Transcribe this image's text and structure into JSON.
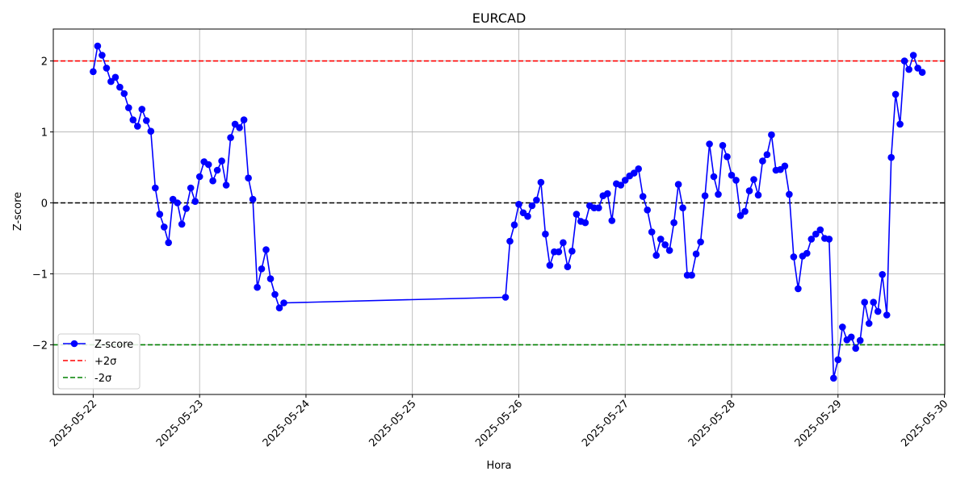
{
  "chart_data": {
    "type": "line",
    "title": "EURCAD",
    "xlabel": "Hora",
    "ylabel": "Z-score",
    "xlim": [
      "2025-05-21T15:00",
      "2025-05-30T00:05"
    ],
    "ylim": [
      -2.7,
      2.45
    ],
    "x_tick_labels": [
      "2025-05-22",
      "2025-05-23",
      "2025-05-24",
      "2025-05-25",
      "2025-05-26",
      "2025-05-27",
      "2025-05-28",
      "2025-05-29",
      "2025-05-30"
    ],
    "y_tick_values": [
      -2,
      -1,
      0,
      1,
      2
    ],
    "y_tick_labels": [
      "−2",
      "−1",
      "0",
      "1",
      "2"
    ],
    "grid": true,
    "legend_position": "lower-left",
    "reference_lines": [
      {
        "name": "+2σ",
        "y": 2,
        "color": "#ff0000",
        "style": "dashed"
      },
      {
        "name": "0",
        "y": 0,
        "color": "#000000",
        "style": "dashed"
      },
      {
        "name": "-2σ",
        "y": -2,
        "color": "#008000",
        "style": "dashed"
      }
    ],
    "series": [
      {
        "name": "Z-score",
        "color": "#0000ff",
        "marker": "circle",
        "points": [
          [
            "2025-05-22T00:00",
            1.85
          ],
          [
            "2025-05-22T01:00",
            2.21
          ],
          [
            "2025-05-22T02:00",
            2.08
          ],
          [
            "2025-05-22T03:00",
            1.9
          ],
          [
            "2025-05-22T04:00",
            1.71
          ],
          [
            "2025-05-22T05:00",
            1.77
          ],
          [
            "2025-05-22T06:00",
            1.63
          ],
          [
            "2025-05-22T07:00",
            1.54
          ],
          [
            "2025-05-22T08:00",
            1.34
          ],
          [
            "2025-05-22T09:00",
            1.17
          ],
          [
            "2025-05-22T10:00",
            1.08
          ],
          [
            "2025-05-22T11:00",
            1.32
          ],
          [
            "2025-05-22T12:00",
            1.16
          ],
          [
            "2025-05-22T13:00",
            1.01
          ],
          [
            "2025-05-22T14:00",
            0.21
          ],
          [
            "2025-05-22T15:00",
            -0.16
          ],
          [
            "2025-05-22T16:00",
            -0.34
          ],
          [
            "2025-05-22T17:00",
            -0.56
          ],
          [
            "2025-05-22T18:00",
            0.05
          ],
          [
            "2025-05-22T19:00",
            0.0
          ],
          [
            "2025-05-22T20:00",
            -0.3
          ],
          [
            "2025-05-22T21:00",
            -0.08
          ],
          [
            "2025-05-22T22:00",
            0.21
          ],
          [
            "2025-05-22T23:00",
            0.02
          ],
          [
            "2025-05-23T00:00",
            0.37
          ],
          [
            "2025-05-23T01:00",
            0.58
          ],
          [
            "2025-05-23T02:00",
            0.54
          ],
          [
            "2025-05-23T03:00",
            0.31
          ],
          [
            "2025-05-23T04:00",
            0.46
          ],
          [
            "2025-05-23T05:00",
            0.59
          ],
          [
            "2025-05-23T06:00",
            0.25
          ],
          [
            "2025-05-23T07:00",
            0.92
          ],
          [
            "2025-05-23T08:00",
            1.11
          ],
          [
            "2025-05-23T09:00",
            1.06
          ],
          [
            "2025-05-23T10:00",
            1.17
          ],
          [
            "2025-05-23T11:00",
            0.35
          ],
          [
            "2025-05-23T12:00",
            0.05
          ],
          [
            "2025-05-23T13:00",
            -1.19
          ],
          [
            "2025-05-23T14:00",
            -0.93
          ],
          [
            "2025-05-23T15:00",
            -0.66
          ],
          [
            "2025-05-23T16:00",
            -1.07
          ],
          [
            "2025-05-23T17:00",
            -1.29
          ],
          [
            "2025-05-23T18:00",
            -1.48
          ],
          [
            "2025-05-23T19:00",
            -1.41
          ],
          [
            "2025-05-25T21:00",
            -1.33
          ],
          [
            "2025-05-25T22:00",
            -0.54
          ],
          [
            "2025-05-25T23:00",
            -0.31
          ],
          [
            "2025-05-26T00:00",
            -0.02
          ],
          [
            "2025-05-26T01:00",
            -0.14
          ],
          [
            "2025-05-26T02:00",
            -0.19
          ],
          [
            "2025-05-26T03:00",
            -0.04
          ],
          [
            "2025-05-26T04:00",
            0.04
          ],
          [
            "2025-05-26T05:00",
            0.29
          ],
          [
            "2025-05-26T06:00",
            -0.44
          ],
          [
            "2025-05-26T07:00",
            -0.88
          ],
          [
            "2025-05-26T08:00",
            -0.69
          ],
          [
            "2025-05-26T09:00",
            -0.69
          ],
          [
            "2025-05-26T10:00",
            -0.56
          ],
          [
            "2025-05-26T11:00",
            -0.9
          ],
          [
            "2025-05-26T12:00",
            -0.68
          ],
          [
            "2025-05-26T13:00",
            -0.16
          ],
          [
            "2025-05-26T14:00",
            -0.26
          ],
          [
            "2025-05-26T15:00",
            -0.28
          ],
          [
            "2025-05-26T16:00",
            -0.04
          ],
          [
            "2025-05-26T17:00",
            -0.07
          ],
          [
            "2025-05-26T18:00",
            -0.07
          ],
          [
            "2025-05-26T19:00",
            0.1
          ],
          [
            "2025-05-26T20:00",
            0.13
          ],
          [
            "2025-05-26T21:00",
            -0.25
          ],
          [
            "2025-05-26T22:00",
            0.27
          ],
          [
            "2025-05-26T23:00",
            0.25
          ],
          [
            "2025-05-27T00:00",
            0.32
          ],
          [
            "2025-05-27T01:00",
            0.38
          ],
          [
            "2025-05-27T02:00",
            0.42
          ],
          [
            "2025-05-27T03:00",
            0.48
          ],
          [
            "2025-05-27T04:00",
            0.09
          ],
          [
            "2025-05-27T05:00",
            -0.1
          ],
          [
            "2025-05-27T06:00",
            -0.41
          ],
          [
            "2025-05-27T07:00",
            -0.74
          ],
          [
            "2025-05-27T08:00",
            -0.51
          ],
          [
            "2025-05-27T09:00",
            -0.59
          ],
          [
            "2025-05-27T10:00",
            -0.67
          ],
          [
            "2025-05-27T11:00",
            -0.28
          ],
          [
            "2025-05-27T12:00",
            0.26
          ],
          [
            "2025-05-27T13:00",
            -0.07
          ],
          [
            "2025-05-27T14:00",
            -1.02
          ],
          [
            "2025-05-27T15:00",
            -1.02
          ],
          [
            "2025-05-27T16:00",
            -0.72
          ],
          [
            "2025-05-27T17:00",
            -0.55
          ],
          [
            "2025-05-27T18:00",
            0.1
          ],
          [
            "2025-05-27T19:00",
            0.83
          ],
          [
            "2025-05-27T20:00",
            0.37
          ],
          [
            "2025-05-27T21:00",
            0.12
          ],
          [
            "2025-05-27T22:00",
            0.81
          ],
          [
            "2025-05-27T23:00",
            0.65
          ],
          [
            "2025-05-28T00:00",
            0.39
          ],
          [
            "2025-05-28T01:00",
            0.32
          ],
          [
            "2025-05-28T02:00",
            -0.18
          ],
          [
            "2025-05-28T03:00",
            -0.12
          ],
          [
            "2025-05-28T04:00",
            0.17
          ],
          [
            "2025-05-28T05:00",
            0.33
          ],
          [
            "2025-05-28T06:00",
            0.11
          ],
          [
            "2025-05-28T07:00",
            0.59
          ],
          [
            "2025-05-28T08:00",
            0.68
          ],
          [
            "2025-05-28T09:00",
            0.96
          ],
          [
            "2025-05-28T10:00",
            0.46
          ],
          [
            "2025-05-28T11:00",
            0.47
          ],
          [
            "2025-05-28T12:00",
            0.52
          ],
          [
            "2025-05-28T13:00",
            0.12
          ],
          [
            "2025-05-28T14:00",
            -0.76
          ],
          [
            "2025-05-28T15:00",
            -1.21
          ],
          [
            "2025-05-28T16:00",
            -0.75
          ],
          [
            "2025-05-28T17:00",
            -0.71
          ],
          [
            "2025-05-28T18:00",
            -0.51
          ],
          [
            "2025-05-28T19:00",
            -0.44
          ],
          [
            "2025-05-28T20:00",
            -0.38
          ],
          [
            "2025-05-28T21:00",
            -0.5
          ],
          [
            "2025-05-28T22:00",
            -0.51
          ],
          [
            "2025-05-28T23:00",
            -2.47
          ],
          [
            "2025-05-29T00:00",
            -2.21
          ],
          [
            "2025-05-29T01:00",
            -1.75
          ],
          [
            "2025-05-29T02:00",
            -1.93
          ],
          [
            "2025-05-29T03:00",
            -1.89
          ],
          [
            "2025-05-29T04:00",
            -2.05
          ],
          [
            "2025-05-29T05:00",
            -1.94
          ],
          [
            "2025-05-29T06:00",
            -1.4
          ],
          [
            "2025-05-29T07:00",
            -1.7
          ],
          [
            "2025-05-29T08:00",
            -1.4
          ],
          [
            "2025-05-29T09:00",
            -1.53
          ],
          [
            "2025-05-29T10:00",
            -1.01
          ],
          [
            "2025-05-29T11:00",
            -1.58
          ],
          [
            "2025-05-29T12:00",
            0.64
          ],
          [
            "2025-05-29T13:00",
            1.53
          ],
          [
            "2025-05-29T14:00",
            1.11
          ],
          [
            "2025-05-29T15:00",
            2.0
          ],
          [
            "2025-05-29T16:00",
            1.88
          ],
          [
            "2025-05-29T17:00",
            2.08
          ],
          [
            "2025-05-29T18:00",
            1.9
          ],
          [
            "2025-05-29T19:00",
            1.84
          ]
        ]
      }
    ],
    "legend": [
      {
        "label": "Z-score",
        "kind": "line-marker",
        "color": "#0000ff"
      },
      {
        "label": "+2σ",
        "kind": "dashed",
        "color": "#ff0000"
      },
      {
        "label": "-2σ",
        "kind": "dashed",
        "color": "#008000"
      }
    ]
  }
}
